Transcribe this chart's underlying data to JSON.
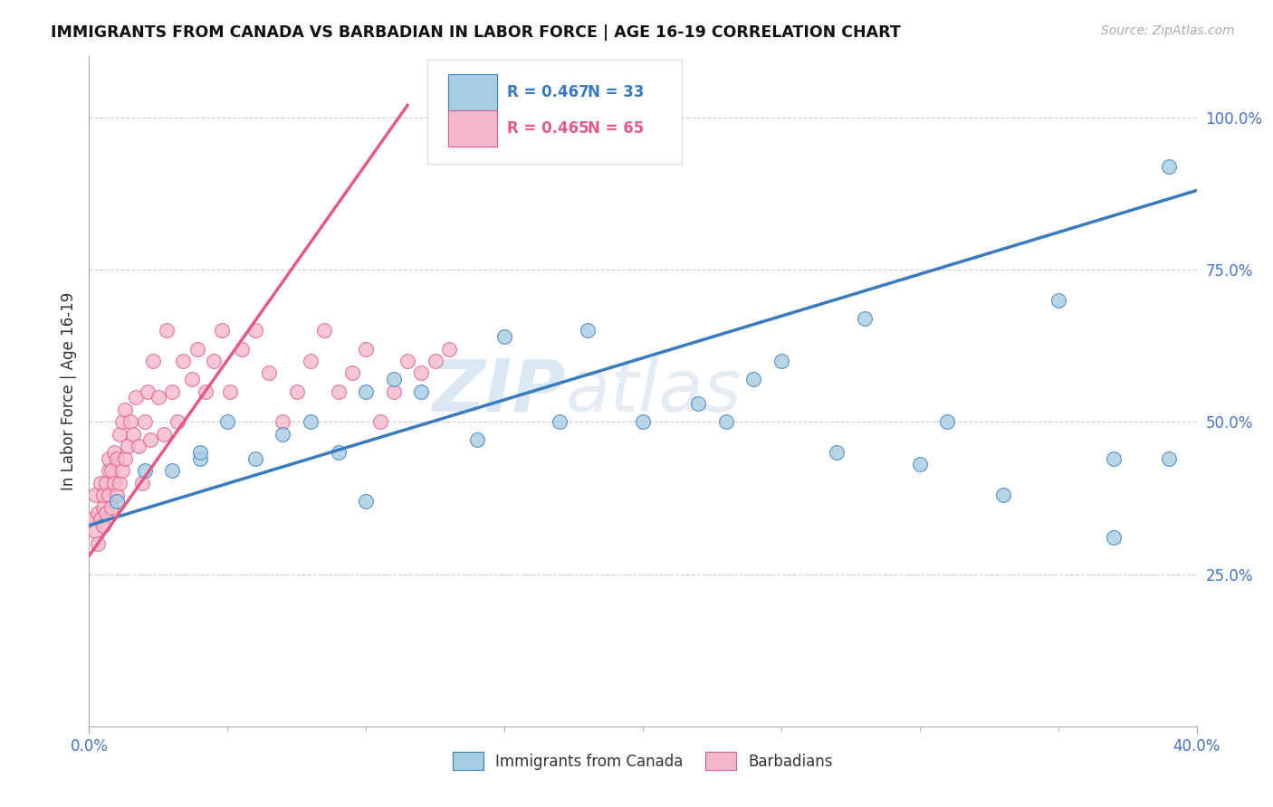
{
  "title": "IMMIGRANTS FROM CANADA VS BARBADIAN IN LABOR FORCE | AGE 16-19 CORRELATION CHART",
  "source_text": "Source: ZipAtlas.com",
  "ylabel": "In Labor Force | Age 16-19",
  "xlim": [
    0.0,
    0.4
  ],
  "ylim": [
    0.0,
    1.1
  ],
  "canada_R": 0.467,
  "canada_N": 33,
  "barbadian_R": 0.465,
  "barbadian_N": 65,
  "canada_color": "#a8cce4",
  "barbadian_color": "#f4b8cb",
  "canada_line_color": "#3a7abf",
  "barbadian_line_color": "#e05a8a",
  "legend_label_canada": "Immigrants from Canada",
  "legend_label_barbadian": "Barbadians",
  "watermark_zip": "ZIP",
  "watermark_atlas": "atlas",
  "background_color": "#ffffff",
  "grid_color": "#cccccc",
  "canada_line_x0": 0.0,
  "canada_line_y0": 0.33,
  "canada_line_x1": 0.4,
  "canada_line_y1": 0.88,
  "barb_line_x0": 0.0,
  "barb_line_y0": 0.28,
  "barb_line_x1": 0.115,
  "barb_line_y1": 1.02,
  "canada_x": [
    0.01,
    0.02,
    0.03,
    0.04,
    0.04,
    0.05,
    0.06,
    0.07,
    0.08,
    0.09,
    0.1,
    0.1,
    0.11,
    0.12,
    0.14,
    0.15,
    0.17,
    0.18,
    0.2,
    0.22,
    0.23,
    0.24,
    0.25,
    0.27,
    0.28,
    0.3,
    0.31,
    0.33,
    0.35,
    0.37,
    0.37,
    0.39,
    0.39
  ],
  "canada_y": [
    0.37,
    0.42,
    0.42,
    0.44,
    0.45,
    0.5,
    0.44,
    0.48,
    0.5,
    0.45,
    0.37,
    0.55,
    0.57,
    0.55,
    0.47,
    0.64,
    0.5,
    0.65,
    0.5,
    0.53,
    0.5,
    0.57,
    0.6,
    0.45,
    0.67,
    0.43,
    0.5,
    0.38,
    0.7,
    0.31,
    0.44,
    0.92,
    0.44
  ],
  "barbadian_x": [
    0.001,
    0.002,
    0.002,
    0.003,
    0.003,
    0.004,
    0.004,
    0.005,
    0.005,
    0.005,
    0.006,
    0.006,
    0.007,
    0.007,
    0.007,
    0.008,
    0.008,
    0.009,
    0.009,
    0.01,
    0.01,
    0.011,
    0.011,
    0.012,
    0.012,
    0.013,
    0.013,
    0.014,
    0.015,
    0.016,
    0.017,
    0.018,
    0.019,
    0.02,
    0.021,
    0.022,
    0.023,
    0.025,
    0.027,
    0.028,
    0.03,
    0.032,
    0.034,
    0.037,
    0.039,
    0.042,
    0.045,
    0.048,
    0.051,
    0.055,
    0.06,
    0.065,
    0.07,
    0.075,
    0.08,
    0.085,
    0.09,
    0.095,
    0.1,
    0.105,
    0.11,
    0.115,
    0.12,
    0.125,
    0.13
  ],
  "barbadian_y": [
    0.34,
    0.32,
    0.38,
    0.3,
    0.35,
    0.34,
    0.4,
    0.36,
    0.33,
    0.38,
    0.4,
    0.35,
    0.42,
    0.38,
    0.44,
    0.36,
    0.42,
    0.4,
    0.45,
    0.38,
    0.44,
    0.4,
    0.48,
    0.42,
    0.5,
    0.44,
    0.52,
    0.46,
    0.5,
    0.48,
    0.54,
    0.46,
    0.4,
    0.5,
    0.55,
    0.47,
    0.6,
    0.54,
    0.48,
    0.65,
    0.55,
    0.5,
    0.6,
    0.57,
    0.62,
    0.55,
    0.6,
    0.65,
    0.55,
    0.62,
    0.65,
    0.58,
    0.5,
    0.55,
    0.6,
    0.65,
    0.55,
    0.58,
    0.62,
    0.5,
    0.55,
    0.6,
    0.58,
    0.6,
    0.62
  ]
}
